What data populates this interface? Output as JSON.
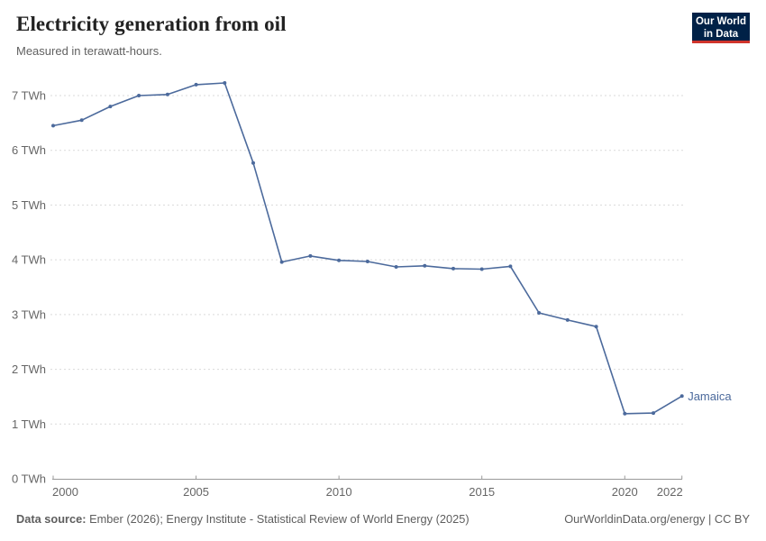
{
  "header": {
    "title": "Electricity generation from oil",
    "subtitle": "Measured in terawatt-hours."
  },
  "logo": {
    "line1": "Our World",
    "line2": "in Data",
    "bg_color": "#002147",
    "accent_color": "#d0342c"
  },
  "chart_data": {
    "type": "line",
    "title": "Electricity generation from oil",
    "subtitle": "Measured in terawatt-hours.",
    "xlabel": "",
    "ylabel": "TWh",
    "xlim": [
      2000,
      2022
    ],
    "ylim": [
      0,
      7.3
    ],
    "grid": "horizontal-dashed",
    "legend_position": "end-of-line",
    "x": [
      2000,
      2001,
      2002,
      2003,
      2004,
      2005,
      2006,
      2007,
      2008,
      2009,
      2010,
      2011,
      2012,
      2013,
      2014,
      2015,
      2016,
      2017,
      2018,
      2019,
      2020,
      2021,
      2022
    ],
    "series": [
      {
        "name": "Jamaica",
        "color": "#4c6a9c",
        "values": [
          6.45,
          6.55,
          6.8,
          7.0,
          7.02,
          7.2,
          7.23,
          5.77,
          3.96,
          4.07,
          3.99,
          3.97,
          3.87,
          3.89,
          3.84,
          3.83,
          3.88,
          3.03,
          2.9,
          2.78,
          1.19,
          1.2,
          1.51
        ]
      }
    ],
    "y_ticks": [
      0,
      1,
      2,
      3,
      4,
      5,
      6,
      7
    ],
    "y_tick_suffix": " TWh",
    "x_ticks": [
      2000,
      2005,
      2010,
      2015,
      2020,
      2022
    ],
    "colors": {
      "gridline": "#dadada",
      "axis": "#9a9a9a",
      "tick_label": "#666666"
    }
  },
  "footer": {
    "source_label": "Data source:",
    "source_text": " Ember (2026); Energy Institute - Statistical Review of World Energy (2025)",
    "right_text": "OurWorldinData.org/energy | CC BY"
  }
}
